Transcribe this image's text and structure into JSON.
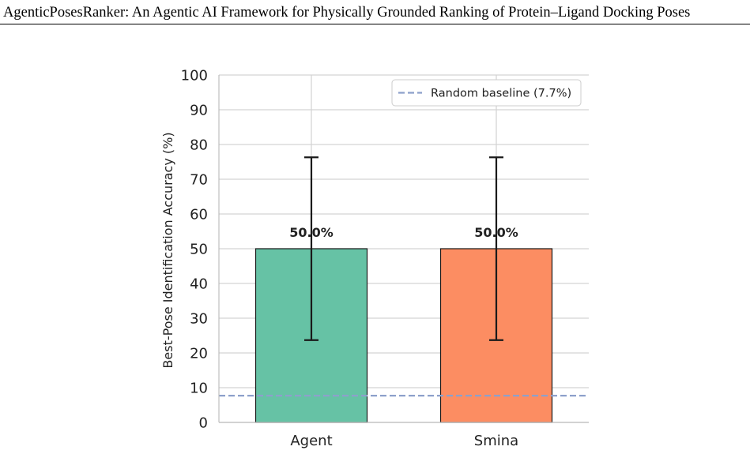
{
  "header": {
    "title": "AgenticPosesRanker: An Agentic AI Framework for Physically Grounded Ranking of Protein–Ligand Docking Poses"
  },
  "chart_data": {
    "type": "bar",
    "categories": [
      "Agent",
      "Smina"
    ],
    "values": [
      50.0,
      50.0
    ],
    "error_low": [
      23.7,
      23.7
    ],
    "error_high": [
      76.3,
      76.3
    ],
    "data_labels": [
      "50.0%",
      "50.0%"
    ],
    "colors": [
      "#66c2a5",
      "#fc8d62"
    ],
    "ylabel": "Best-Pose Identification Accuracy (%)",
    "xlabel": "",
    "ylim": [
      0,
      100
    ],
    "yticks": [
      0,
      10,
      20,
      30,
      40,
      50,
      60,
      70,
      80,
      90,
      100
    ],
    "grid": true,
    "baseline": {
      "label": "Random baseline (7.7%)",
      "value": 7.7,
      "color": "#8da0cb",
      "style": "dashed"
    },
    "legend": {
      "placement": "top-right"
    }
  }
}
